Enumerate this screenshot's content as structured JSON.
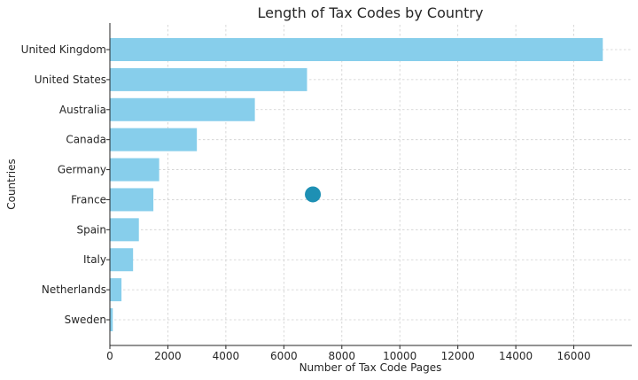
{
  "chart_data": {
    "type": "bar",
    "orientation": "horizontal",
    "title": "Length of Tax Codes by Country",
    "xlabel": "Number of Tax Code Pages",
    "ylabel": "Countries",
    "categories": [
      "United Kingdom",
      "United States",
      "Australia",
      "Canada",
      "Germany",
      "France",
      "Spain",
      "Italy",
      "Netherlands",
      "Sweden"
    ],
    "values": [
      17000,
      6800,
      5000,
      3000,
      1700,
      1500,
      1000,
      800,
      400,
      100
    ],
    "xlim": [
      0,
      18000
    ],
    "xticks": [
      0,
      2000,
      4000,
      6000,
      8000,
      10000,
      12000,
      14000,
      16000
    ],
    "grid": true,
    "bar_color": "#87ceeb",
    "marker": {
      "x": 7000,
      "category": "France",
      "color": "#1e90b4"
    }
  }
}
